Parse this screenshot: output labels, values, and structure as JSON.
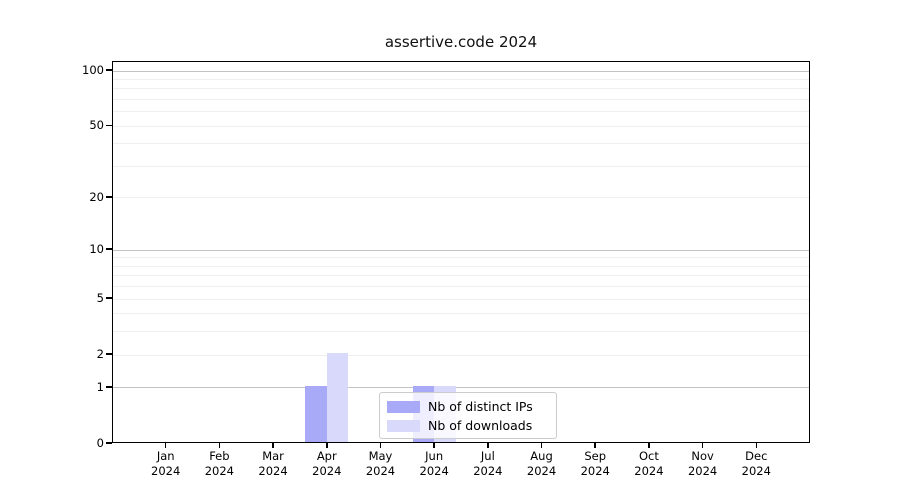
{
  "title": "assertive.code 2024",
  "chart_data": {
    "type": "bar",
    "title": "assertive.code 2024",
    "categories": [
      "Jan 2024",
      "Feb 2024",
      "Mar 2024",
      "Apr 2024",
      "May 2024",
      "Jun 2024",
      "Jul 2024",
      "Aug 2024",
      "Sep 2024",
      "Oct 2024",
      "Nov 2024",
      "Dec 2024"
    ],
    "series": [
      {
        "name": "Nb of distinct IPs",
        "color": "#a8aaf8",
        "values": [
          0,
          0,
          0,
          1,
          0,
          1,
          0,
          0,
          0,
          0,
          0,
          0
        ]
      },
      {
        "name": "Nb of downloads",
        "color": "#d9dafb",
        "values": [
          0,
          0,
          0,
          2,
          0,
          1,
          0,
          0,
          0,
          0,
          0,
          0
        ]
      }
    ],
    "xlabel": "",
    "ylabel": "",
    "yscale": "log1p",
    "ylim": [
      0,
      112
    ],
    "ytick_values": [
      0,
      1,
      2,
      5,
      10,
      20,
      50,
      100
    ],
    "ytick_labels": [
      "0",
      "1",
      "2",
      "5",
      "10",
      "20",
      "50",
      "100"
    ],
    "major_grid_values": [
      1,
      10,
      100
    ],
    "minor_grid_values": [
      2,
      3,
      4,
      5,
      6,
      7,
      8,
      9,
      20,
      30,
      40,
      50,
      60,
      70,
      80,
      90
    ],
    "grid": "on",
    "legend_position": "lower-center-inside",
    "colors": {
      "major_grid": "#c3c3c3",
      "minor_grid": "#efefef",
      "axis": "#000000",
      "background": "#ffffff"
    }
  }
}
